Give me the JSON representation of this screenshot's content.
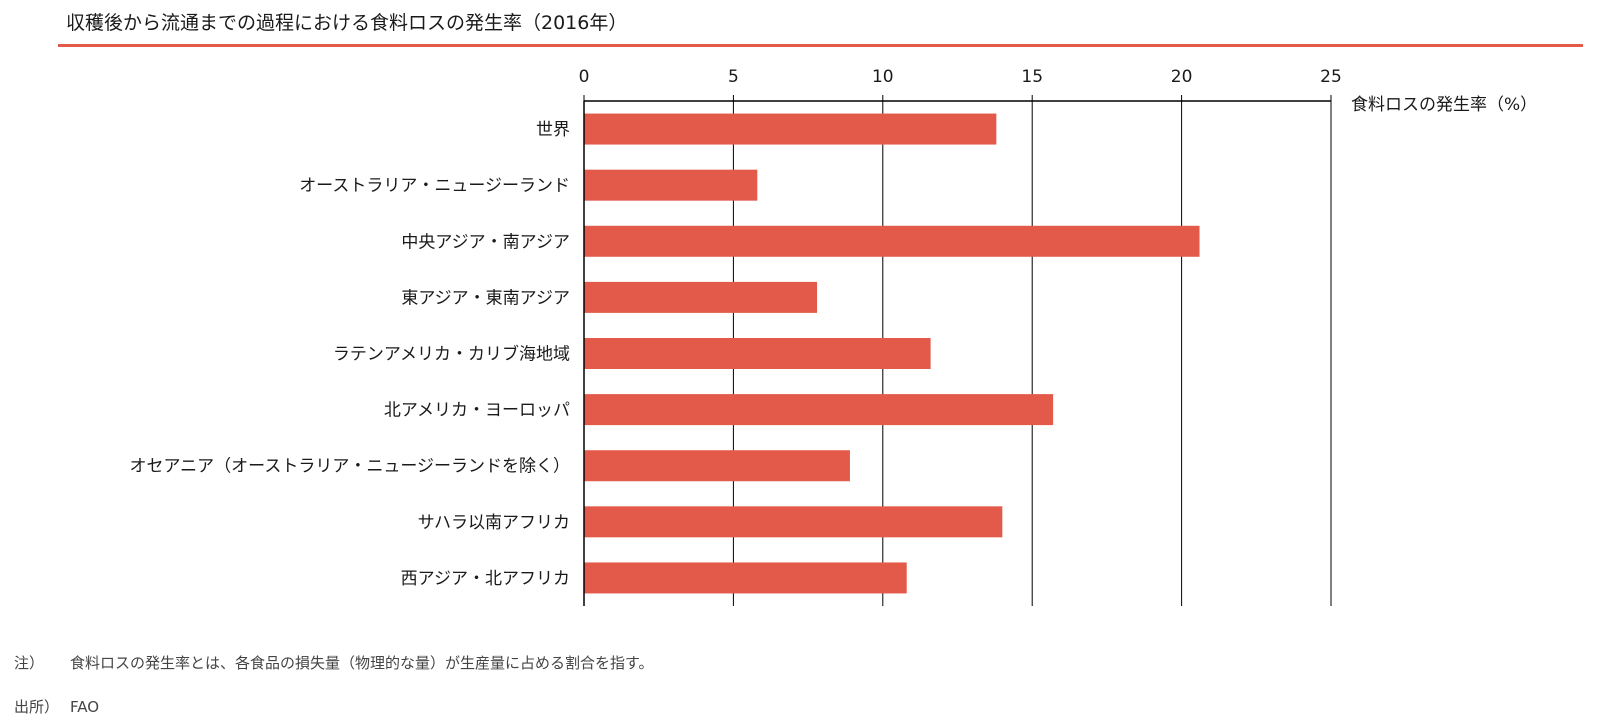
{
  "colors": {
    "accent": "#e35a4b",
    "bar": "#e35a4b",
    "axis": "#000000",
    "grid": "#000000"
  },
  "chart_data": {
    "type": "bar",
    "orientation": "horizontal",
    "title": "収穫後から流通までの過程における食料ロスの発生率（2016年）",
    "xlabel": "食料ロスの発生率（%）",
    "ylabel": "",
    "xlim": [
      0,
      25
    ],
    "ticks": [
      0,
      5,
      10,
      15,
      20,
      25
    ],
    "grid": true,
    "axis_position": "top",
    "categories": [
      "世界",
      "オーストラリア・ニュージーランド",
      "中央アジア・南アジア",
      "東アジア・東南アジア",
      "ラテンアメリカ・カリブ海地域",
      "北アメリカ・ヨーロッパ",
      "オセアニア（オーストラリア・ニュージーランドを除く）",
      "サハラ以南アフリカ",
      "西アジア・北アフリカ"
    ],
    "values": [
      13.8,
      5.8,
      20.6,
      7.8,
      11.6,
      15.7,
      8.9,
      14.0,
      10.8
    ]
  },
  "footer": {
    "note_label": "注）",
    "note_text": "食料ロスの発生率とは、各食品の損失量（物理的な量）が生産量に占める割合を指す。",
    "source_label": "出所）",
    "source_text": "FAO"
  }
}
